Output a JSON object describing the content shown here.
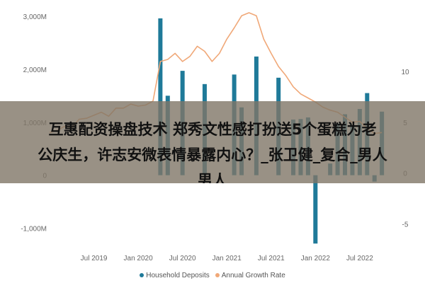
{
  "chart_data": {
    "type": "bar+line",
    "title": "",
    "x_labels": [
      "Jul 2019",
      "Jan 2020",
      "Jul 2020",
      "Jan 2021",
      "Jul 2021",
      "Jan 2022",
      "Jul 2022"
    ],
    "left_axis": {
      "ticks": [
        "-1,000M",
        "0",
        "1,000M",
        "2,000M",
        "3,000M"
      ],
      "range": [
        -1300,
        3200
      ]
    },
    "right_axis": {
      "ticks": [
        "-5",
        "0",
        "5",
        "10"
      ],
      "range": [
        -7,
        16.5
      ]
    },
    "bar_series": {
      "name": "Household Deposits",
      "color": "#1f7a99",
      "points": [
        [
          "2020-04",
          2960
        ],
        [
          "2020-05",
          1500
        ],
        [
          "2020-07",
          1970
        ],
        [
          "2020-10",
          1720
        ],
        [
          "2021-02",
          1900
        ],
        [
          "2021-03",
          1280
        ],
        [
          "2021-05",
          2240
        ],
        [
          "2021-08",
          1840
        ],
        [
          "2021-10",
          1050
        ],
        [
          "2021-11",
          1060
        ],
        [
          "2021-12",
          1090
        ],
        [
          "2022-01",
          -1290
        ],
        [
          "2022-03",
          220
        ],
        [
          "2022-04",
          980
        ],
        [
          "2022-05",
          1150
        ],
        [
          "2022-06",
          950
        ],
        [
          "2022-07",
          1250
        ],
        [
          "2022-08",
          1550
        ],
        [
          "2022-09",
          -120
        ],
        [
          "2022-10",
          1200
        ]
      ]
    },
    "line_series": {
      "name": "Annual Growth Rate",
      "color": "#f0a878",
      "points": [
        [
          "2019-01",
          4.0
        ],
        [
          "2019-02",
          4.2
        ],
        [
          "2019-03",
          4.6
        ],
        [
          "2019-04",
          4.5
        ],
        [
          "2019-05",
          5.3
        ],
        [
          "2019-06",
          5.4
        ],
        [
          "2019-07",
          5.7
        ],
        [
          "2019-08",
          6.0
        ],
        [
          "2019-09",
          5.6
        ],
        [
          "2019-10",
          6.4
        ],
        [
          "2019-11",
          6.4
        ],
        [
          "2019-12",
          6.8
        ],
        [
          "2020-01",
          6.6
        ],
        [
          "2020-02",
          6.7
        ],
        [
          "2020-03",
          7.1
        ],
        [
          "2020-04",
          11.0
        ],
        [
          "2020-05",
          11.2
        ],
        [
          "2020-06",
          11.8
        ],
        [
          "2020-07",
          11.0
        ],
        [
          "2020-08",
          11.5
        ],
        [
          "2020-09",
          12.5
        ],
        [
          "2020-10",
          12.0
        ],
        [
          "2020-11",
          11.0
        ],
        [
          "2020-12",
          11.8
        ],
        [
          "2021-01",
          13.2
        ],
        [
          "2021-02",
          14.3
        ],
        [
          "2021-03",
          15.5
        ],
        [
          "2021-04",
          15.8
        ],
        [
          "2021-05",
          15.5
        ],
        [
          "2021-06",
          13.2
        ],
        [
          "2021-07",
          11.8
        ],
        [
          "2021-08",
          10.5
        ],
        [
          "2021-09",
          9.6
        ],
        [
          "2021-10",
          8.5
        ],
        [
          "2021-11",
          7.8
        ],
        [
          "2021-12",
          7.4
        ],
        [
          "2022-01",
          7.0
        ],
        [
          "2022-02",
          6.5
        ],
        [
          "2022-03",
          6.2
        ],
        [
          "2022-04",
          6.0
        ],
        [
          "2022-05",
          5.5
        ],
        [
          "2022-06",
          5.0
        ],
        [
          "2022-07",
          5.1
        ],
        [
          "2022-08",
          4.4
        ],
        [
          "2022-09",
          3.9
        ],
        [
          "2022-10",
          4.0
        ]
      ]
    },
    "legend_position": "bottom",
    "grid": false
  },
  "overlay": {
    "lines": [
      "互惠配资操盘技术 郑秀文性感打扮送5个蛋糕为老",
      "公庆生，许志安微表情暴露内心？_张卫健_复合_男人",
      "男人"
    ]
  },
  "legend": {
    "items": [
      {
        "label": "Household Deposits",
        "color": "#1f7a99"
      },
      {
        "label": "Annual Growth Rate",
        "color": "#f0a878"
      }
    ]
  }
}
